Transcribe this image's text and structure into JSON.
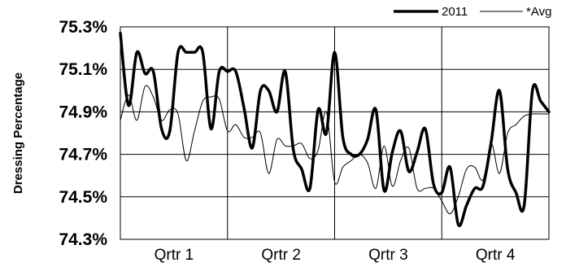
{
  "chart_data": {
    "type": "line",
    "xlabel": "",
    "ylabel": "Dressing Percentage",
    "ylim": [
      74.3,
      75.3
    ],
    "yticks": [
      "75.3%",
      "75.1%",
      "74.9%",
      "74.7%",
      "74.5%",
      "74.3%"
    ],
    "ytick_values": [
      75.3,
      75.1,
      74.9,
      74.7,
      74.5,
      74.3
    ],
    "categories": [
      "Qrtr 1",
      "Qrtr 2",
      "Qrtr 3",
      "Qrtr 4"
    ],
    "x_range": [
      0,
      52
    ],
    "grid": true,
    "legend_position": "top-right",
    "series": [
      {
        "name": "2011",
        "color": "#000000",
        "style": "thick",
        "x": [
          0,
          1,
          2,
          3,
          4,
          5,
          6,
          7,
          8,
          9,
          10,
          11,
          12,
          13,
          14,
          15,
          16,
          17,
          18,
          19,
          20,
          21,
          22,
          23,
          24,
          25,
          26,
          27,
          28,
          29,
          30,
          31,
          32,
          33,
          34,
          35,
          36,
          37,
          38,
          39,
          40,
          41,
          42,
          43,
          44,
          45,
          46,
          47,
          48,
          49,
          50,
          51,
          52
        ],
        "values": [
          75.27,
          74.93,
          75.18,
          75.08,
          75.09,
          74.82,
          74.81,
          75.18,
          75.18,
          75.18,
          75.18,
          74.82,
          75.09,
          75.09,
          75.09,
          74.92,
          74.73,
          75.0,
          75.0,
          74.9,
          75.09,
          74.72,
          74.63,
          74.54,
          74.91,
          74.8,
          75.18,
          74.78,
          74.7,
          74.7,
          74.77,
          74.91,
          74.53,
          74.71,
          74.81,
          74.62,
          74.71,
          74.82,
          74.56,
          74.52,
          74.64,
          74.37,
          74.46,
          74.54,
          74.55,
          74.76,
          75.0,
          74.63,
          74.52,
          74.46,
          75.0,
          74.95,
          74.9
        ],
        "line_width": 3.5
      },
      {
        "name": "*Avg",
        "color": "#000000",
        "style": "thin",
        "x": [
          0,
          1,
          2,
          3,
          4,
          5,
          6,
          7,
          8,
          9,
          10,
          11,
          12,
          13,
          14,
          15,
          16,
          17,
          18,
          19,
          20,
          21,
          22,
          23,
          24,
          25,
          26,
          27,
          28,
          29,
          30,
          31,
          32,
          33,
          34,
          35,
          36,
          37,
          38,
          39,
          40,
          41,
          42,
          43,
          44,
          45,
          46,
          47,
          48,
          49,
          50,
          51,
          52
        ],
        "values": [
          74.86,
          74.98,
          74.86,
          75.02,
          74.97,
          74.86,
          74.91,
          74.89,
          74.67,
          74.81,
          74.95,
          74.97,
          74.96,
          74.81,
          74.84,
          74.78,
          74.78,
          74.8,
          74.61,
          74.77,
          74.74,
          74.74,
          74.75,
          74.68,
          74.72,
          74.9,
          74.57,
          74.64,
          74.67,
          74.7,
          74.66,
          74.54,
          74.74,
          74.55,
          74.67,
          74.73,
          74.54,
          74.54,
          74.54,
          74.48,
          74.42,
          74.5,
          74.63,
          74.64,
          74.58,
          74.75,
          74.61,
          74.8,
          74.84,
          74.88,
          74.89,
          74.89,
          74.89
        ],
        "line_width": 1
      }
    ]
  }
}
